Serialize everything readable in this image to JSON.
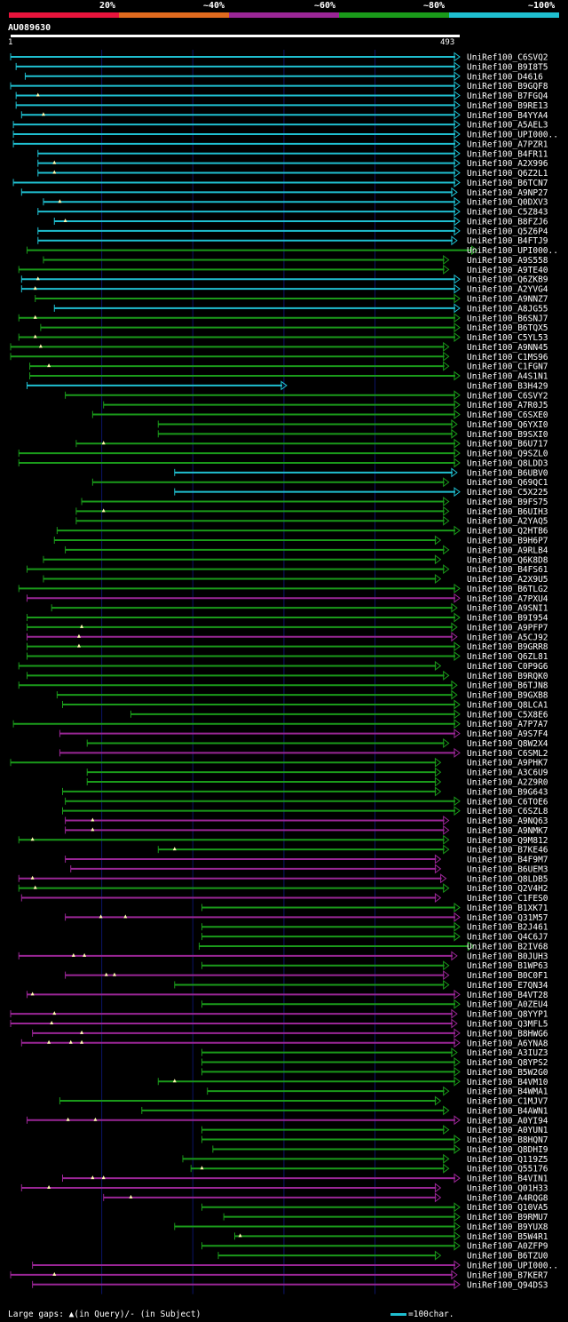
{
  "legend": {
    "labels": [
      "20%",
      "~40%",
      "~60%",
      "~80%",
      "~100%"
    ],
    "colors": [
      "#e8143c",
      "#e06a1e",
      "#9a2696",
      "#1a9a1a",
      "#1fbfd0"
    ]
  },
  "query": {
    "name": "AU089630",
    "start": "1",
    "end": "493",
    "length": 493
  },
  "footer": {
    "gaps": "Large gaps: ▲(in Query)/- (in Subject)",
    "scale": "=100char."
  },
  "colors": {
    "background": "#000000",
    "grid": "#0a1466",
    "text": "#ffffff"
  },
  "chart_data": {
    "type": "alignment-map",
    "hits": [
      {
        "name": "UniRef100_C6SVQ2",
        "c": 4,
        "s": 1,
        "e": 493,
        "g": []
      },
      {
        "name": "UniRef100_B9I8T5",
        "c": 4,
        "s": 7,
        "e": 493,
        "g": []
      },
      {
        "name": "UniRef100_D4616",
        "c": 4,
        "s": 17,
        "e": 493,
        "g": []
      },
      {
        "name": "UniRef100_B9GQF8",
        "c": 4,
        "s": 1,
        "e": 493,
        "g": []
      },
      {
        "name": "UniRef100_B7FGQ4",
        "c": 4,
        "s": 7,
        "e": 493,
        "g": [
          31
        ]
      },
      {
        "name": "UniRef100_B9RE13",
        "c": 4,
        "s": 7,
        "e": 493,
        "g": []
      },
      {
        "name": "UniRef100_B4YYA4",
        "c": 4,
        "s": 13,
        "e": 493,
        "g": [
          37
        ]
      },
      {
        "name": "UniRef100_A5AEL3",
        "c": 4,
        "s": 4,
        "e": 493,
        "g": []
      },
      {
        "name": "UniRef100_UPI000..",
        "c": 4,
        "s": 4,
        "e": 493,
        "g": []
      },
      {
        "name": "UniRef100_A7PZR1",
        "c": 4,
        "s": 4,
        "e": 493,
        "g": []
      },
      {
        "name": "UniRef100_B4FR11",
        "c": 4,
        "s": 31,
        "e": 493,
        "g": []
      },
      {
        "name": "UniRef100_A2X996",
        "c": 4,
        "s": 31,
        "e": 493,
        "g": [
          49
        ]
      },
      {
        "name": "UniRef100_Q6Z2L1",
        "c": 4,
        "s": 31,
        "e": 493,
        "g": [
          49
        ]
      },
      {
        "name": "UniRef100_B6TCN7",
        "c": 4,
        "s": 4,
        "e": 493,
        "g": []
      },
      {
        "name": "UniRef100_A9NP27",
        "c": 4,
        "s": 13,
        "e": 490,
        "g": []
      },
      {
        "name": "UniRef100_Q0DXV3",
        "c": 4,
        "s": 37,
        "e": 493,
        "g": [
          55
        ]
      },
      {
        "name": "UniRef100_C5Z843",
        "c": 4,
        "s": 31,
        "e": 493,
        "g": []
      },
      {
        "name": "UniRef100_B8FZJ6",
        "c": 4,
        "s": 49,
        "e": 493,
        "g": [
          61
        ]
      },
      {
        "name": "UniRef100_Q5Z6P4",
        "c": 4,
        "s": 31,
        "e": 493,
        "g": []
      },
      {
        "name": "UniRef100_B4FTJ9",
        "c": 4,
        "s": 31,
        "e": 490,
        "g": []
      },
      {
        "name": "UniRef100_UPI000..",
        "c": 3,
        "s": 19,
        "e": 512,
        "g": []
      },
      {
        "name": "UniRef100_A9S558",
        "c": 3,
        "s": 37,
        "e": 481,
        "g": []
      },
      {
        "name": "UniRef100_A9TE40",
        "c": 3,
        "s": 10,
        "e": 481,
        "g": []
      },
      {
        "name": "UniRef100_Q6ZKB9",
        "c": 4,
        "s": 13,
        "e": 493,
        "g": [
          31
        ]
      },
      {
        "name": "UniRef100_A2YVG4",
        "c": 4,
        "s": 13,
        "e": 493,
        "g": [
          28
        ]
      },
      {
        "name": "UniRef100_A9NNZ7",
        "c": 3,
        "s": 28,
        "e": 493,
        "g": []
      },
      {
        "name": "UniRef100_A8JG55",
        "c": 4,
        "s": 49,
        "e": 493,
        "g": []
      },
      {
        "name": "UniRef100_B6SNJ7",
        "c": 3,
        "s": 10,
        "e": 493,
        "g": [
          28
        ]
      },
      {
        "name": "UniRef100_B6TQX5",
        "c": 3,
        "s": 34,
        "e": 493,
        "g": []
      },
      {
        "name": "UniRef100_C5YL53",
        "c": 3,
        "s": 10,
        "e": 493,
        "g": [
          28
        ]
      },
      {
        "name": "UniRef100_A9NN45",
        "c": 3,
        "s": 1,
        "e": 481,
        "g": [
          34
        ]
      },
      {
        "name": "UniRef100_C1MS96",
        "c": 3,
        "s": 1,
        "e": 481,
        "g": []
      },
      {
        "name": "UniRef100_C1FGN7",
        "c": 3,
        "s": 22,
        "e": 481,
        "g": [
          43
        ]
      },
      {
        "name": "UniRef100_A4S1N1",
        "c": 3,
        "s": 22,
        "e": 493,
        "g": []
      },
      {
        "name": "UniRef100_B3H429",
        "c": 4,
        "s": 19,
        "e": 303,
        "g": []
      },
      {
        "name": "UniRef100_C6SVY2",
        "c": 3,
        "s": 61,
        "e": 493,
        "g": []
      },
      {
        "name": "UniRef100_A7R0J5",
        "c": 3,
        "s": 103,
        "e": 493,
        "g": []
      },
      {
        "name": "UniRef100_C6SXE0",
        "c": 3,
        "s": 91,
        "e": 493,
        "g": []
      },
      {
        "name": "UniRef100_Q6YXI0",
        "c": 3,
        "s": 163,
        "e": 490,
        "g": []
      },
      {
        "name": "UniRef100_B9SXI0",
        "c": 3,
        "s": 163,
        "e": 490,
        "g": []
      },
      {
        "name": "UniRef100_B6U717",
        "c": 3,
        "s": 73,
        "e": 493,
        "g": [
          103
        ]
      },
      {
        "name": "UniRef100_Q9SZL0",
        "c": 3,
        "s": 10,
        "e": 493,
        "g": []
      },
      {
        "name": "UniRef100_Q8LDD3",
        "c": 3,
        "s": 10,
        "e": 493,
        "g": []
      },
      {
        "name": "UniRef100_B6UBV0",
        "c": 4,
        "s": 181,
        "e": 490,
        "g": []
      },
      {
        "name": "UniRef100_Q69QC1",
        "c": 3,
        "s": 91,
        "e": 481,
        "g": []
      },
      {
        "name": "UniRef100_C5X225",
        "c": 4,
        "s": 181,
        "e": 493,
        "g": []
      },
      {
        "name": "UniRef100_B9FS75",
        "c": 3,
        "s": 79,
        "e": 481,
        "g": []
      },
      {
        "name": "UniRef100_B6UIH3",
        "c": 3,
        "s": 73,
        "e": 481,
        "g": [
          103
        ]
      },
      {
        "name": "UniRef100_A2YAQ5",
        "c": 3,
        "s": 73,
        "e": 481,
        "g": []
      },
      {
        "name": "UniRef100_Q2HTB6",
        "c": 3,
        "s": 52,
        "e": 493,
        "g": []
      },
      {
        "name": "UniRef100_B9H6P7",
        "c": 3,
        "s": 49,
        "e": 472,
        "g": []
      },
      {
        "name": "UniRef100_A9RLB4",
        "c": 3,
        "s": 61,
        "e": 481,
        "g": []
      },
      {
        "name": "UniRef100_Q6K8D8",
        "c": 3,
        "s": 37,
        "e": 472,
        "g": []
      },
      {
        "name": "UniRef100_B4FS61",
        "c": 3,
        "s": 19,
        "e": 481,
        "g": []
      },
      {
        "name": "UniRef100_A2X9U5",
        "c": 3,
        "s": 37,
        "e": 472,
        "g": []
      },
      {
        "name": "UniRef100_B6TLG2",
        "c": 3,
        "s": 10,
        "e": 493,
        "g": []
      },
      {
        "name": "UniRef100_A7PXU4",
        "c": 2,
        "s": 19,
        "e": 493,
        "g": []
      },
      {
        "name": "UniRef100_A9SNI1",
        "c": 3,
        "s": 46,
        "e": 490,
        "g": []
      },
      {
        "name": "UniRef100_B9I954",
        "c": 3,
        "s": 19,
        "e": 493,
        "g": []
      },
      {
        "name": "UniRef100_A9PFP7",
        "c": 3,
        "s": 19,
        "e": 490,
        "g": [
          79
        ]
      },
      {
        "name": "UniRef100_A5CJ92",
        "c": 2,
        "s": 19,
        "e": 490,
        "g": [
          76
        ]
      },
      {
        "name": "UniRef100_B9GRR8",
        "c": 3,
        "s": 19,
        "e": 493,
        "g": [
          76
        ]
      },
      {
        "name": "UniRef100_Q6ZL81",
        "c": 3,
        "s": 19,
        "e": 493,
        "g": []
      },
      {
        "name": "UniRef100_C0P9G6",
        "c": 3,
        "s": 10,
        "e": 472,
        "g": []
      },
      {
        "name": "UniRef100_B9RQK0",
        "c": 3,
        "s": 19,
        "e": 481,
        "g": []
      },
      {
        "name": "UniRef100_B6TJN8",
        "c": 3,
        "s": 10,
        "e": 490,
        "g": []
      },
      {
        "name": "UniRef100_B9GXB8",
        "c": 3,
        "s": 52,
        "e": 490,
        "g": []
      },
      {
        "name": "UniRef100_Q8LCA1",
        "c": 3,
        "s": 58,
        "e": 493,
        "g": []
      },
      {
        "name": "UniRef100_C5X8E6",
        "c": 3,
        "s": 133,
        "e": 493,
        "g": []
      },
      {
        "name": "UniRef100_A7P7A7",
        "c": 3,
        "s": 4,
        "e": 493,
        "g": []
      },
      {
        "name": "UniRef100_A9S7F4",
        "c": 2,
        "s": 55,
        "e": 493,
        "g": []
      },
      {
        "name": "UniRef100_Q8W2X4",
        "c": 3,
        "s": 85,
        "e": 481,
        "g": []
      },
      {
        "name": "UniRef100_C6SML2",
        "c": 2,
        "s": 55,
        "e": 493,
        "g": []
      },
      {
        "name": "UniRef100_A9PHK7",
        "c": 3,
        "s": 1,
        "e": 472,
        "g": []
      },
      {
        "name": "UniRef100_A3C6U9",
        "c": 3,
        "s": 85,
        "e": 472,
        "g": []
      },
      {
        "name": "UniRef100_A2Z9R0",
        "c": 3,
        "s": 85,
        "e": 472,
        "g": []
      },
      {
        "name": "UniRef100_B9G643",
        "c": 3,
        "s": 58,
        "e": 472,
        "g": []
      },
      {
        "name": "UniRef100_C6TOE6",
        "c": 3,
        "s": 61,
        "e": 493,
        "g": []
      },
      {
        "name": "UniRef100_C6SZL8",
        "c": 3,
        "s": 58,
        "e": 493,
        "g": []
      },
      {
        "name": "UniRef100_A9NQ63",
        "c": 2,
        "s": 61,
        "e": 481,
        "g": [
          91
        ]
      },
      {
        "name": "UniRef100_A9NMK7",
        "c": 2,
        "s": 61,
        "e": 481,
        "g": [
          91
        ]
      },
      {
        "name": "UniRef100_Q9M812",
        "c": 3,
        "s": 10,
        "e": 481,
        "g": [
          25
        ]
      },
      {
        "name": "UniRef100_B7KE46",
        "c": 3,
        "s": 163,
        "e": 481,
        "g": [
          181
        ]
      },
      {
        "name": "UniRef100_B4F9M7",
        "c": 2,
        "s": 61,
        "e": 472,
        "g": []
      },
      {
        "name": "UniRef100_B6UEM3",
        "c": 2,
        "s": 67,
        "e": 472,
        "g": []
      },
      {
        "name": "UniRef100_Q8LDB5",
        "c": 2,
        "s": 10,
        "e": 478,
        "g": [
          25
        ]
      },
      {
        "name": "UniRef100_Q2V4H2",
        "c": 3,
        "s": 10,
        "e": 481,
        "g": [
          28
        ]
      },
      {
        "name": "UniRef100_C1FES0",
        "c": 2,
        "s": 13,
        "e": 472,
        "g": []
      },
      {
        "name": "UniRef100_B1XK71",
        "c": 3,
        "s": 211,
        "e": 493,
        "g": []
      },
      {
        "name": "UniRef100_Q31M57",
        "c": 2,
        "s": 61,
        "e": 493,
        "g": [
          100,
          127
        ]
      },
      {
        "name": "UniRef100_B2J461",
        "c": 3,
        "s": 211,
        "e": 493,
        "g": []
      },
      {
        "name": "UniRef100_Q4C6J7",
        "c": 3,
        "s": 211,
        "e": 493,
        "g": []
      },
      {
        "name": "UniRef100_B2IV68",
        "c": 3,
        "s": 208,
        "e": 508,
        "g": []
      },
      {
        "name": "UniRef100_B0JUH3",
        "c": 2,
        "s": 10,
        "e": 490,
        "g": [
          70,
          82
        ]
      },
      {
        "name": "UniRef100_B1WP63",
        "c": 3,
        "s": 211,
        "e": 481,
        "g": []
      },
      {
        "name": "UniRef100_B0C0F1",
        "c": 2,
        "s": 61,
        "e": 481,
        "g": [
          106,
          115
        ]
      },
      {
        "name": "UniRef100_E7QN34",
        "c": 3,
        "s": 181,
        "e": 481,
        "g": []
      },
      {
        "name": "UniRef100_B4VT28",
        "c": 2,
        "s": 19,
        "e": 493,
        "g": [
          25
        ]
      },
      {
        "name": "UniRef100_A0ZEU4",
        "c": 3,
        "s": 211,
        "e": 493,
        "g": []
      },
      {
        "name": "UniRef100_Q8YYP1",
        "c": 2,
        "s": 1,
        "e": 490,
        "g": [
          49
        ]
      },
      {
        "name": "UniRef100_Q3MFL5",
        "c": 2,
        "s": 1,
        "e": 490,
        "g": [
          46
        ]
      },
      {
        "name": "UniRef100_B8HWG6",
        "c": 2,
        "s": 25,
        "e": 493,
        "g": [
          79
        ]
      },
      {
        "name": "UniRef100_A6YNA8",
        "c": 2,
        "s": 13,
        "e": 493,
        "g": [
          43,
          67,
          79
        ]
      },
      {
        "name": "UniRef100_A3IUZ3",
        "c": 3,
        "s": 211,
        "e": 490,
        "g": []
      },
      {
        "name": "UniRef100_Q8YPS2",
        "c": 3,
        "s": 211,
        "e": 493,
        "g": []
      },
      {
        "name": "UniRef100_B5W2G0",
        "c": 3,
        "s": 211,
        "e": 493,
        "g": []
      },
      {
        "name": "UniRef100_B4VM10",
        "c": 3,
        "s": 163,
        "e": 493,
        "g": [
          181
        ]
      },
      {
        "name": "UniRef100_B4WMA1",
        "c": 3,
        "s": 217,
        "e": 481,
        "g": []
      },
      {
        "name": "UniRef100_C1MJV7",
        "c": 3,
        "s": 55,
        "e": 472,
        "g": []
      },
      {
        "name": "UniRef100_B4AWN1",
        "c": 3,
        "s": 145,
        "e": 481,
        "g": []
      },
      {
        "name": "UniRef100_A0YI94",
        "c": 2,
        "s": 19,
        "e": 493,
        "g": [
          64,
          94
        ]
      },
      {
        "name": "UniRef100_A0YUN1",
        "c": 3,
        "s": 211,
        "e": 481,
        "g": []
      },
      {
        "name": "UniRef100_B8HQN7",
        "c": 3,
        "s": 211,
        "e": 493,
        "g": []
      },
      {
        "name": "UniRef100_Q8DHI9",
        "c": 3,
        "s": 223,
        "e": 493,
        "g": []
      },
      {
        "name": "UniRef100_Q119Z5",
        "c": 3,
        "s": 190,
        "e": 481,
        "g": []
      },
      {
        "name": "UniRef100_Q55176",
        "c": 3,
        "s": 199,
        "e": 481,
        "g": [
          211
        ]
      },
      {
        "name": "UniRef100_B4VIN1",
        "c": 2,
        "s": 58,
        "e": 493,
        "g": [
          91,
          103
        ]
      },
      {
        "name": "UniRef100_Q01H33",
        "c": 2,
        "s": 13,
        "e": 472,
        "g": [
          43
        ]
      },
      {
        "name": "UniRef100_A4RQG8",
        "c": 2,
        "s": 103,
        "e": 472,
        "g": [
          133
        ]
      },
      {
        "name": "UniRef100_Q10VA5",
        "c": 3,
        "s": 211,
        "e": 493,
        "g": []
      },
      {
        "name": "UniRef100_B9RMU7",
        "c": 3,
        "s": 235,
        "e": 493,
        "g": []
      },
      {
        "name": "UniRef100_B9YUX8",
        "c": 3,
        "s": 181,
        "e": 493,
        "g": []
      },
      {
        "name": "UniRef100_B5W4R1",
        "c": 3,
        "s": 247,
        "e": 493,
        "g": [
          253
        ]
      },
      {
        "name": "UniRef100_A0ZFP9",
        "c": 3,
        "s": 211,
        "e": 493,
        "g": []
      },
      {
        "name": "UniRef100_B6TZU0",
        "c": 3,
        "s": 229,
        "e": 472,
        "g": []
      },
      {
        "name": "UniRef100_UPI000..",
        "c": 2,
        "s": 25,
        "e": 493,
        "g": []
      },
      {
        "name": "UniRef100_B7KER7",
        "c": 2,
        "s": 1,
        "e": 490,
        "g": [
          49
        ]
      },
      {
        "name": "UniRef100_Q94DS3",
        "c": 2,
        "s": 25,
        "e": 493,
        "g": []
      }
    ]
  }
}
